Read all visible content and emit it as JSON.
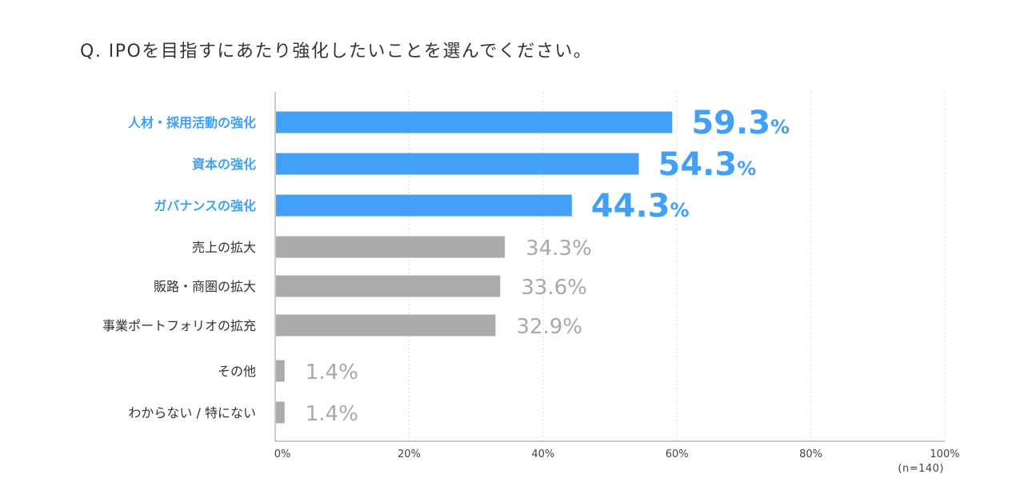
{
  "title": "Q. IPOを目指すにあたり強化したいことを選んでください。",
  "sample_note": "(n=140)",
  "colors": {
    "highlight": "#42A0F7",
    "default_bar": "#ABABAB",
    "default_label": "#333333",
    "default_value": "#A9A9A9",
    "axis": "#999999",
    "grid": "#DDDDDD"
  },
  "chart_data": {
    "type": "bar",
    "orientation": "horizontal",
    "categories": [
      "人材・採用活動の強化",
      "資本の強化",
      "ガバナンスの強化",
      "売上の拡大",
      "販路・商圏の拡大",
      "事業ポートフォリオの拡充",
      "その他",
      "わからない / 特にない"
    ],
    "values": [
      59.3,
      54.3,
      44.3,
      34.3,
      33.6,
      32.9,
      1.4,
      1.4
    ],
    "highlighted": [
      true,
      true,
      true,
      false,
      false,
      false,
      false,
      false
    ],
    "value_suffix": "%",
    "xlim": [
      0,
      100
    ],
    "xticks": [
      0,
      20,
      40,
      60,
      80,
      100
    ],
    "xtick_labels": [
      "0%",
      "20%",
      "40%",
      "60%",
      "80%",
      "100%"
    ],
    "grid": "vertical dotted",
    "legend": "none"
  }
}
